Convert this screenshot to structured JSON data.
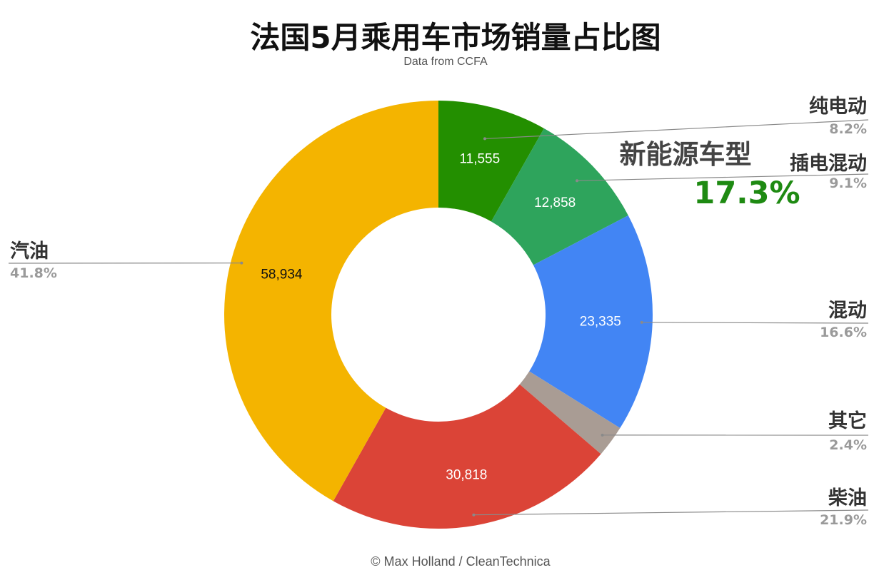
{
  "header": {
    "title": "法国5月乘用车市场销量占比图",
    "subtitle": "Data from CCFA"
  },
  "callout": {
    "title": "新能源车型",
    "value": "17.3%"
  },
  "credit": "© Max Holland / CleanTechnica",
  "chart_data": {
    "type": "pie",
    "donut": true,
    "start_angle_deg": 0,
    "direction": "clockwise",
    "slices": [
      {
        "name": "纯电动",
        "value": 11555,
        "value_label": "11,555",
        "percent_label": "8.2%",
        "color": "#238f00",
        "value_label_color": "#ffffff"
      },
      {
        "name": "插电混动",
        "value": 12858,
        "value_label": "12,858",
        "percent_label": "9.1%",
        "color": "#2ea45c",
        "value_label_color": "#ffffff"
      },
      {
        "name": "混动",
        "value": 23335,
        "value_label": "23,335",
        "percent_label": "16.6%",
        "color": "#4285f4",
        "value_label_color": "#ffffff"
      },
      {
        "name": "其它",
        "value": 3380,
        "value_label": "",
        "percent_label": "2.4%",
        "color": "#a99c94",
        "value_label_color": "#ffffff"
      },
      {
        "name": "柴油",
        "value": 30818,
        "value_label": "30,818",
        "percent_label": "21.9%",
        "color": "#db4437",
        "value_label_color": "#ffffff"
      },
      {
        "name": "汽油",
        "value": 58934,
        "value_label": "58,934",
        "percent_label": "41.8%",
        "color": "#f4b400",
        "value_label_color": "#111111"
      }
    ]
  }
}
